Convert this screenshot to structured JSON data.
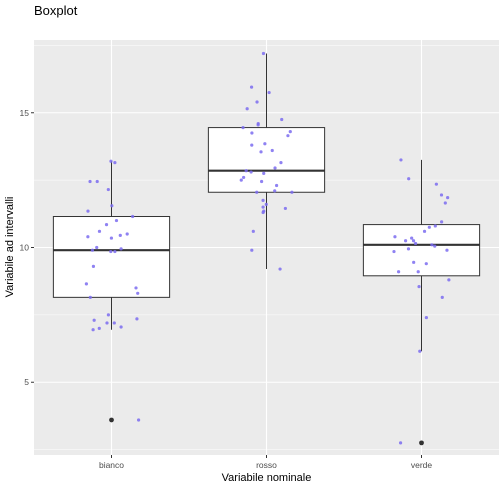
{
  "chart_data": {
    "type": "boxplot",
    "title": "Boxplot",
    "xlabel": "Variabile nominale",
    "ylabel": "Variabile ad intervalli",
    "ylim": [
      2.3,
      17.7
    ],
    "yticks": [
      5,
      10,
      15
    ],
    "grid": true,
    "categories": [
      "bianco",
      "rosso",
      "verde"
    ],
    "boxes": [
      {
        "category": "bianco",
        "q1": 8.15,
        "median": 9.9,
        "q3": 11.15,
        "whisker_low": 6.95,
        "whisker_high": 13.2,
        "outliers": [
          3.6
        ]
      },
      {
        "category": "rosso",
        "q1": 12.05,
        "median": 12.85,
        "q3": 14.45,
        "whisker_low": 9.2,
        "whisker_high": 17.2,
        "outliers": []
      },
      {
        "category": "verde",
        "q1": 8.95,
        "median": 10.1,
        "q3": 10.85,
        "whisker_low": 6.15,
        "whisker_high": 13.25,
        "outliers": [
          2.75
        ]
      }
    ],
    "jitter_points": [
      {
        "category": "bianco",
        "values": [
          13.2,
          13.15,
          12.45,
          12.45,
          12.15,
          11.55,
          11.35,
          11.15,
          11.0,
          10.85,
          10.6,
          10.5,
          10.45,
          10.4,
          10.35,
          10.0,
          9.95,
          9.9,
          9.85,
          9.85,
          9.3,
          8.65,
          8.5,
          8.3,
          8.15,
          7.5,
          7.35,
          7.3,
          7.2,
          7.2,
          7.05,
          7.0,
          6.95,
          3.6
        ]
      },
      {
        "category": "rosso",
        "values": [
          17.2,
          15.95,
          15.75,
          15.4,
          15.15,
          14.75,
          14.6,
          14.55,
          14.45,
          14.3,
          14.25,
          14.15,
          13.85,
          13.8,
          13.6,
          13.55,
          13.15,
          12.95,
          12.85,
          12.8,
          12.75,
          12.6,
          12.5,
          12.45,
          12.3,
          12.1,
          12.05,
          12.05,
          11.75,
          11.6,
          11.5,
          11.45,
          11.35,
          11.3,
          10.6,
          9.9,
          9.2
        ]
      },
      {
        "category": "verde",
        "values": [
          13.25,
          12.55,
          12.35,
          11.95,
          11.85,
          11.65,
          10.95,
          10.8,
          10.75,
          10.6,
          10.4,
          10.35,
          10.25,
          10.25,
          10.15,
          10.1,
          10.05,
          9.95,
          9.9,
          9.85,
          9.45,
          9.4,
          9.1,
          9.1,
          8.8,
          8.55,
          8.15,
          7.4,
          6.15,
          2.75
        ]
      }
    ],
    "colors": {
      "panel": "#ebebeb",
      "grid_major": "#ffffff",
      "box_fill": "#ffffff",
      "box_line": "#333333",
      "jitter": "#7b6cf0",
      "outlier": "#333333",
      "tick": "#333333"
    }
  }
}
